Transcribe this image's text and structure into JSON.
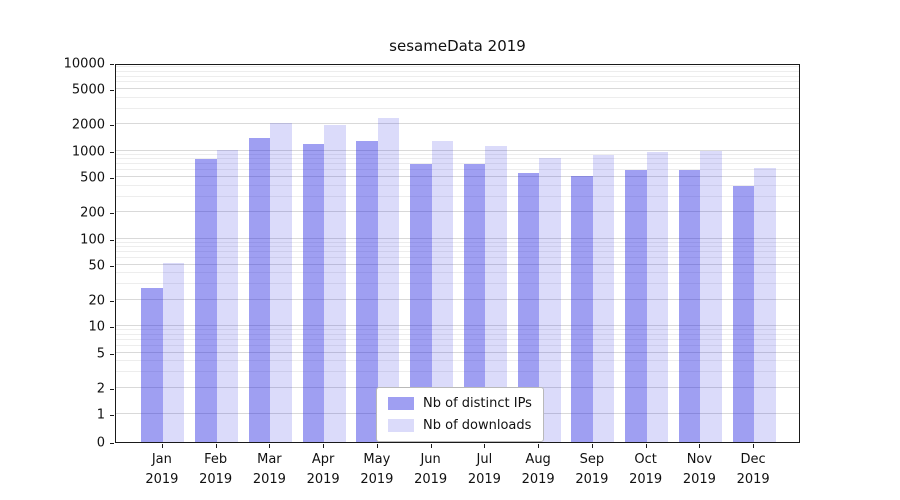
{
  "chart_data": {
    "type": "bar",
    "title": "sesameData 2019",
    "year": "2019",
    "categories": [
      "Jan",
      "Feb",
      "Mar",
      "Apr",
      "May",
      "Jun",
      "Jul",
      "Aug",
      "Sep",
      "Oct",
      "Nov",
      "Dec"
    ],
    "series": [
      {
        "name": "Nb of distinct IPs",
        "color": "#2020e06e",
        "values": [
          27,
          800,
          1400,
          1200,
          1300,
          700,
          700,
          560,
          520,
          600,
          610,
          400
        ]
      },
      {
        "name": "Nb of downloads",
        "color": "#2020e029",
        "values": [
          52,
          1030,
          2050,
          1950,
          2350,
          1300,
          1120,
          830,
          900,
          970,
          1000,
          640
        ]
      }
    ],
    "yscale": "symlog",
    "yticks": [
      0,
      1,
      2,
      5,
      10,
      20,
      50,
      100,
      200,
      500,
      1000,
      2000,
      5000,
      10000
    ],
    "ylim": [
      0,
      10000
    ],
    "grid": "horizontal-major-and-minor",
    "legend_position": "lower-center-inside"
  },
  "colors": {
    "grid_major": "#d9d9d9",
    "grid_minor": "#ededed",
    "axis": "#1a1a1a",
    "background": "#ffffff"
  }
}
